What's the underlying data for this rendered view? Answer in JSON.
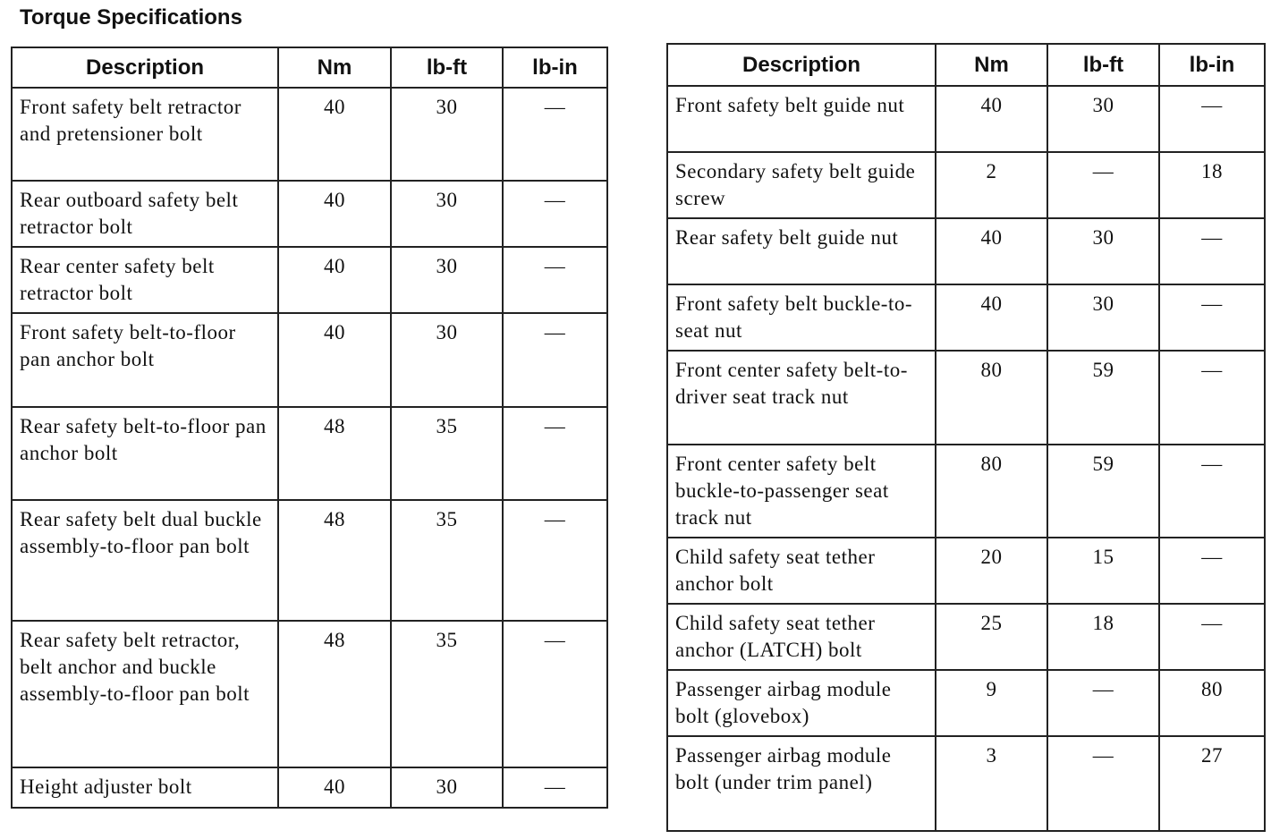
{
  "title": "Torque Specifications",
  "headers": [
    "Description",
    "Nm",
    "lb-ft",
    "lb-in"
  ],
  "left_table": [
    {
      "description": "Front safety belt retractor and pretensioner bolt",
      "nm": "40",
      "lbft": "30",
      "lbin": "—"
    },
    {
      "description": "Rear outboard safety belt retractor bolt",
      "nm": "40",
      "lbft": "30",
      "lbin": "—"
    },
    {
      "description": "Rear center safety belt retractor bolt",
      "nm": "40",
      "lbft": "30",
      "lbin": "—"
    },
    {
      "description": "Front safety belt-to-floor pan anchor bolt",
      "nm": "40",
      "lbft": "30",
      "lbin": "—"
    },
    {
      "description": "Rear safety belt-to-floor pan anchor bolt",
      "nm": "48",
      "lbft": "35",
      "lbin": "—"
    },
    {
      "description": "Rear safety belt dual buckle assembly-to-floor pan bolt",
      "nm": "48",
      "lbft": "35",
      "lbin": "—"
    },
    {
      "description": "Rear safety belt retractor, belt anchor and buckle assembly-to-floor pan bolt",
      "nm": "48",
      "lbft": "35",
      "lbin": "—"
    },
    {
      "description": "Height adjuster bolt",
      "nm": "40",
      "lbft": "30",
      "lbin": "—"
    }
  ],
  "right_table": [
    {
      "description": "Front safety belt guide nut",
      "nm": "40",
      "lbft": "30",
      "lbin": "—"
    },
    {
      "description": "Secondary safety belt guide screw",
      "nm": "2",
      "lbft": "—",
      "lbin": "18"
    },
    {
      "description": "Rear safety belt guide nut",
      "nm": "40",
      "lbft": "30",
      "lbin": "—"
    },
    {
      "description": "Front safety belt buckle-to-seat nut",
      "nm": "40",
      "lbft": "30",
      "lbin": "—"
    },
    {
      "description": "Front center safety belt-to-driver seat track nut",
      "nm": "80",
      "lbft": "59",
      "lbin": "—"
    },
    {
      "description": "Front center safety belt buckle-to-passenger seat track nut",
      "nm": "80",
      "lbft": "59",
      "lbin": "—"
    },
    {
      "description": "Child safety seat tether anchor bolt",
      "nm": "20",
      "lbft": "15",
      "lbin": "—"
    },
    {
      "description": "Child safety seat tether anchor (LATCH) bolt",
      "nm": "25",
      "lbft": "18",
      "lbin": "—"
    },
    {
      "description": "Passenger airbag module bolt (glovebox)",
      "nm": "9",
      "lbft": "—",
      "lbin": "80"
    },
    {
      "description": "Passenger airbag module bolt (under trim panel)",
      "nm": "3",
      "lbft": "—",
      "lbin": "27"
    }
  ]
}
